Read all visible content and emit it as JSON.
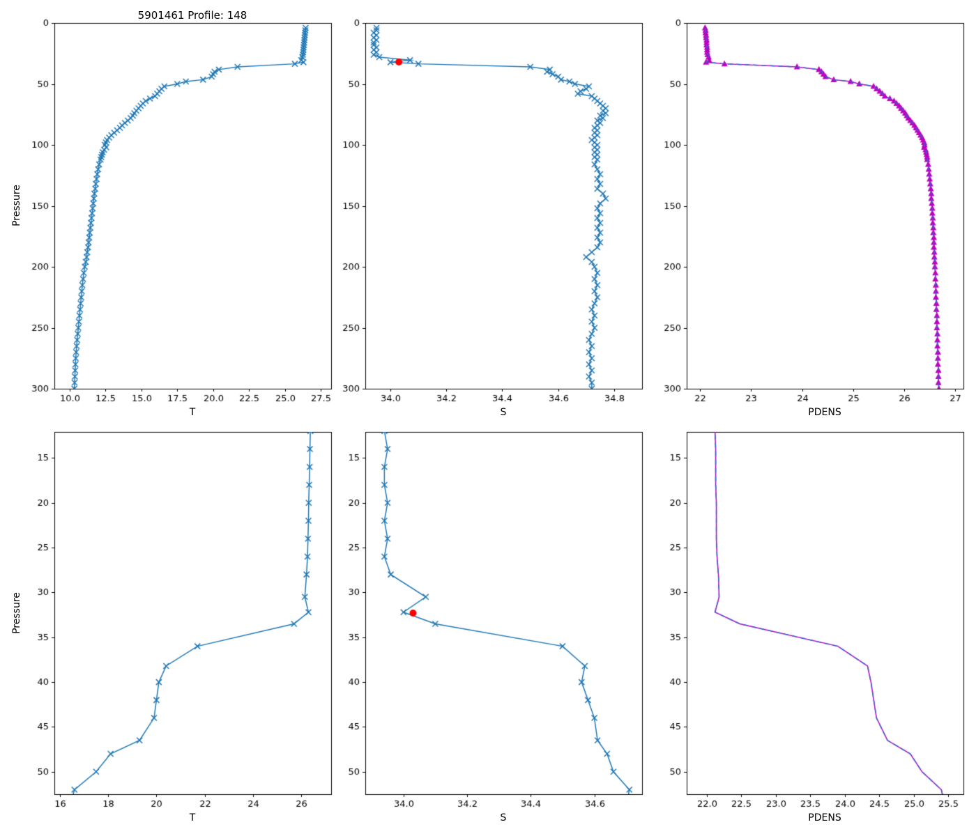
{
  "figure": {
    "title": "5901461 Profile: 148",
    "background": "#ffffff"
  },
  "colors": {
    "profile_line": "#1f77b4",
    "pdens_line": "#bf00bf",
    "pdens_overlay": "#3a5fcd",
    "marker_dot": "#ff0000",
    "axis": "#000000"
  },
  "profile": {
    "pressure": [
      4,
      6,
      8,
      10,
      12,
      14,
      16,
      18,
      20,
      22,
      24,
      26,
      28,
      30.5,
      32.2,
      33.5,
      36,
      38.2,
      40,
      42,
      44,
      46.5,
      48,
      50,
      52,
      54,
      56,
      58,
      60,
      62,
      64,
      66,
      68,
      70,
      72,
      74,
      76,
      78,
      80,
      82,
      84,
      86,
      88,
      90,
      92,
      94,
      96,
      98,
      100,
      102,
      104,
      106,
      108,
      110,
      112,
      116,
      120,
      124,
      128,
      132,
      136,
      140,
      144,
      148,
      152,
      156,
      160,
      164,
      168,
      172,
      176,
      180,
      184,
      188,
      192,
      196,
      200,
      205,
      210,
      215,
      220,
      225,
      230,
      235,
      240,
      245,
      250,
      255,
      260,
      265,
      270,
      275,
      280,
      285,
      290,
      295,
      300
    ],
    "T": [
      26.45,
      26.43,
      26.41,
      26.4,
      26.38,
      26.36,
      26.35,
      26.33,
      26.31,
      26.3,
      26.28,
      26.26,
      26.22,
      26.15,
      26.3,
      25.7,
      21.7,
      20.4,
      20.1,
      20.0,
      19.9,
      19.3,
      18.1,
      17.5,
      16.6,
      16.4,
      16.25,
      16.1,
      15.95,
      15.6,
      15.3,
      15.1,
      14.95,
      14.8,
      14.65,
      14.5,
      14.4,
      14.25,
      14.05,
      13.85,
      13.65,
      13.5,
      13.3,
      13.1,
      12.9,
      12.75,
      12.6,
      12.52,
      12.45,
      12.55,
      12.4,
      12.3,
      12.25,
      12.2,
      12.15,
      12.05,
      11.98,
      11.92,
      11.87,
      11.82,
      11.78,
      11.72,
      11.68,
      11.64,
      11.6,
      11.56,
      11.52,
      11.48,
      11.44,
      11.4,
      11.36,
      11.32,
      11.28,
      11.22,
      11.18,
      11.12,
      11.05,
      10.98,
      10.93,
      10.88,
      10.84,
      10.8,
      10.76,
      10.72,
      10.68,
      10.64,
      10.6,
      10.56,
      10.52,
      10.48,
      10.45,
      10.42,
      10.4,
      10.38,
      10.36,
      10.34,
      10.32
    ],
    "S": [
      33.95,
      33.95,
      33.94,
      33.95,
      33.94,
      33.95,
      33.94,
      33.94,
      33.95,
      33.94,
      33.95,
      33.94,
      33.96,
      34.07,
      34.0,
      34.1,
      34.5,
      34.57,
      34.56,
      34.58,
      34.6,
      34.61,
      34.64,
      34.66,
      34.71,
      34.7,
      34.68,
      34.67,
      34.72,
      34.73,
      34.74,
      34.75,
      34.76,
      34.77,
      34.76,
      34.77,
      34.75,
      34.76,
      34.74,
      34.75,
      34.74,
      34.73,
      34.74,
      34.73,
      34.74,
      34.73,
      34.72,
      34.73,
      34.74,
      34.73,
      34.74,
      34.73,
      34.74,
      34.73,
      34.74,
      34.73,
      34.74,
      34.75,
      34.74,
      34.75,
      34.74,
      34.76,
      34.77,
      34.75,
      34.74,
      34.75,
      34.74,
      34.75,
      34.74,
      34.75,
      34.74,
      34.75,
      34.74,
      34.72,
      34.7,
      34.72,
      34.73,
      34.74,
      34.73,
      34.74,
      34.73,
      34.74,
      34.73,
      34.72,
      34.73,
      34.72,
      34.73,
      34.72,
      34.71,
      34.72,
      34.71,
      34.72,
      34.71,
      34.72,
      34.71,
      34.72,
      34.72
    ],
    "PDENS": [
      22.1,
      22.11,
      22.11,
      22.12,
      22.12,
      22.13,
      22.13,
      22.13,
      22.14,
      22.14,
      22.14,
      22.15,
      22.17,
      22.18,
      22.12,
      22.48,
      23.9,
      24.33,
      24.38,
      24.42,
      24.46,
      24.62,
      24.95,
      25.12,
      25.4,
      25.46,
      25.52,
      25.57,
      25.62,
      25.72,
      25.8,
      25.85,
      25.9,
      25.94,
      25.98,
      26.02,
      26.05,
      26.08,
      26.12,
      26.16,
      26.2,
      26.23,
      26.26,
      26.29,
      26.32,
      26.35,
      26.37,
      26.39,
      26.4,
      26.39,
      26.42,
      26.43,
      26.44,
      26.45,
      26.45,
      26.47,
      26.48,
      26.49,
      26.5,
      26.51,
      26.52,
      26.53,
      26.53,
      26.54,
      26.55,
      26.55,
      26.56,
      26.56,
      26.57,
      26.57,
      26.58,
      26.58,
      26.58,
      26.59,
      26.59,
      26.6,
      26.6,
      26.61,
      26.61,
      26.62,
      26.62,
      26.62,
      26.63,
      26.63,
      26.64,
      26.64,
      26.64,
      26.65,
      26.65,
      26.65,
      26.66,
      26.66,
      26.66,
      26.67,
      26.67,
      26.67,
      26.68
    ]
  },
  "chart_data": [
    {
      "id": "temperature-full",
      "type": "line",
      "title": "5901461 Profile: 148",
      "xlabel": "T",
      "ylabel": "Pressure",
      "xlim": [
        8.93,
        28.23
      ],
      "ylim": [
        0,
        300
      ],
      "xticks": [
        10.0,
        12.5,
        15.0,
        17.5,
        20.0,
        22.5,
        25.0,
        27.5
      ],
      "xtick_labels": [
        "10.0",
        "12.5",
        "15.0",
        "17.5",
        "20.0",
        "22.5",
        "25.0",
        "27.5"
      ],
      "yticks": [
        0,
        50,
        100,
        150,
        200,
        250,
        300
      ],
      "ytick_labels": [
        "0",
        "50",
        "100",
        "150",
        "200",
        "250",
        "300"
      ],
      "series": [
        {
          "name": "T",
          "data": "T",
          "color": "profile_line",
          "marker": "x"
        }
      ]
    },
    {
      "id": "salinity-full",
      "type": "line",
      "title": "",
      "xlabel": "S",
      "ylabel": "",
      "xlim": [
        33.91,
        34.9
      ],
      "ylim": [
        0,
        300
      ],
      "xticks": [
        34.0,
        34.2,
        34.4,
        34.6,
        34.8
      ],
      "xtick_labels": [
        "34.0",
        "34.2",
        "34.4",
        "34.6",
        "34.8"
      ],
      "yticks": [
        0,
        50,
        100,
        150,
        200,
        250,
        300
      ],
      "ytick_labels": [
        "0",
        "50",
        "100",
        "150",
        "200",
        "250",
        "300"
      ],
      "series": [
        {
          "name": "S",
          "data": "S",
          "color": "profile_line",
          "marker": "x"
        }
      ],
      "annotations": [
        {
          "type": "dot",
          "x": 34.03,
          "y": 32.0,
          "color": "marker_dot"
        }
      ]
    },
    {
      "id": "pdens-full",
      "type": "line",
      "title": "",
      "xlabel": "PDENS",
      "ylabel": "",
      "xlim": [
        21.74,
        27.16
      ],
      "ylim": [
        0,
        300
      ],
      "xticks": [
        22,
        23,
        24,
        25,
        26,
        27
      ],
      "xtick_labels": [
        "22",
        "23",
        "24",
        "25",
        "26",
        "27"
      ],
      "yticks": [
        0,
        50,
        100,
        150,
        200,
        250,
        300
      ],
      "ytick_labels": [
        "0",
        "50",
        "100",
        "150",
        "200",
        "250",
        "300"
      ],
      "series": [
        {
          "name": "PDENS",
          "data": "PDENS",
          "color": "pdens_line",
          "marker": "triangle"
        },
        {
          "name": "PDENS-overlay",
          "data": "PDENS",
          "color": "pdens_overlay",
          "dash": [
            7,
            5
          ]
        }
      ]
    },
    {
      "id": "temperature-zoom",
      "type": "line",
      "title": "",
      "xlabel": "T",
      "ylabel": "Pressure",
      "xlim": [
        15.77,
        27.24
      ],
      "ylim": [
        12.1,
        52.5
      ],
      "xticks": [
        16,
        18,
        20,
        22,
        24,
        26
      ],
      "xtick_labels": [
        "16",
        "18",
        "20",
        "22",
        "24",
        "26"
      ],
      "yticks": [
        15,
        20,
        25,
        30,
        35,
        40,
        45,
        50
      ],
      "ytick_labels": [
        "15",
        "20",
        "25",
        "30",
        "35",
        "40",
        "45",
        "50"
      ],
      "series": [
        {
          "name": "T",
          "data": "T",
          "color": "profile_line",
          "marker": "x"
        }
      ]
    },
    {
      "id": "salinity-zoom",
      "type": "line",
      "title": "",
      "xlabel": "S",
      "ylabel": "",
      "xlim": [
        33.88,
        34.75
      ],
      "ylim": [
        12.1,
        52.5
      ],
      "xticks": [
        34.0,
        34.2,
        34.4,
        34.6
      ],
      "xtick_labels": [
        "34.0",
        "34.2",
        "34.4",
        "34.6"
      ],
      "yticks": [
        15,
        20,
        25,
        30,
        35,
        40,
        45,
        50
      ],
      "ytick_labels": [
        "15",
        "20",
        "25",
        "30",
        "35",
        "40",
        "45",
        "50"
      ],
      "series": [
        {
          "name": "S",
          "data": "S",
          "color": "profile_line",
          "marker": "x"
        }
      ],
      "annotations": [
        {
          "type": "dot",
          "x": 34.03,
          "y": 32.3,
          "color": "marker_dot"
        }
      ]
    },
    {
      "id": "pdens-zoom",
      "type": "line",
      "title": "",
      "xlabel": "PDENS",
      "ylabel": "",
      "xlim": [
        21.71,
        25.72
      ],
      "ylim": [
        12.1,
        52.5
      ],
      "xticks": [
        22.0,
        22.5,
        23.0,
        23.5,
        24.0,
        24.5,
        25.0,
        25.5
      ],
      "xtick_labels": [
        "22.0",
        "22.5",
        "23.0",
        "23.5",
        "24.0",
        "24.5",
        "25.0",
        "25.5"
      ],
      "yticks": [
        15,
        20,
        25,
        30,
        35,
        40,
        45,
        50
      ],
      "ytick_labels": [
        "15",
        "20",
        "25",
        "30",
        "35",
        "40",
        "45",
        "50"
      ],
      "series": [
        {
          "name": "PDENS",
          "data": "PDENS",
          "color": "pdens_line"
        },
        {
          "name": "PDENS-overlay",
          "data": "PDENS",
          "color": "pdens_overlay",
          "dash": [
            7,
            5
          ]
        }
      ]
    }
  ]
}
